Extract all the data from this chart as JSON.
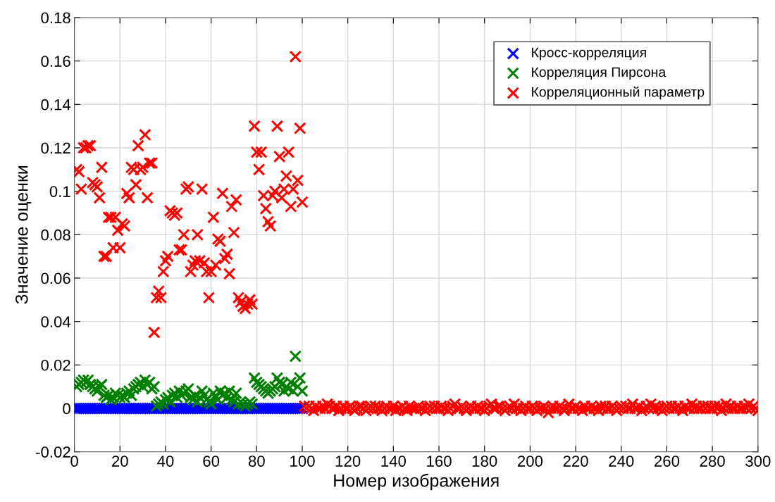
{
  "chart_data": {
    "type": "scatter",
    "xlabel": "Номер изображения",
    "ylabel": "Значение оценки",
    "xlim": [
      0,
      300
    ],
    "ylim": [
      -0.02,
      0.18
    ],
    "xticks": [
      0,
      20,
      40,
      60,
      80,
      100,
      120,
      140,
      160,
      180,
      200,
      220,
      240,
      260,
      280,
      300
    ],
    "yticks": [
      -0.02,
      0,
      0.02,
      0.04,
      0.06,
      0.08,
      0.1,
      0.12,
      0.14,
      0.16,
      0.18
    ],
    "grid": true,
    "legend": "top right",
    "marker": "cross",
    "series": [
      {
        "name": "Кросс-корреляция",
        "color": "#0000ff",
        "x": [
          1,
          2,
          3,
          4,
          5,
          6,
          7,
          8,
          9,
          10,
          11,
          12,
          13,
          14,
          15,
          16,
          17,
          18,
          19,
          20,
          21,
          22,
          23,
          24,
          25,
          26,
          27,
          28,
          29,
          30,
          31,
          32,
          33,
          34,
          35,
          36,
          37,
          38,
          39,
          40,
          41,
          42,
          43,
          44,
          45,
          46,
          47,
          48,
          49,
          50,
          51,
          52,
          53,
          54,
          55,
          56,
          57,
          58,
          59,
          60,
          61,
          62,
          63,
          64,
          65,
          66,
          67,
          68,
          69,
          70,
          71,
          72,
          73,
          74,
          75,
          76,
          77,
          78,
          79,
          80,
          81,
          82,
          83,
          84,
          85,
          86,
          87,
          88,
          89,
          90,
          91,
          92,
          93,
          94,
          95,
          96,
          97,
          98,
          99,
          100
        ],
        "values": [
          0,
          0,
          0,
          0,
          0,
          0,
          0,
          0,
          0,
          0,
          0,
          0,
          0,
          0,
          0,
          0,
          0,
          0,
          0,
          0,
          0,
          0,
          0,
          0,
          0,
          0,
          0,
          0,
          0,
          0,
          0,
          0,
          0,
          0,
          0,
          0,
          0,
          0,
          0,
          0,
          0,
          0,
          0,
          0,
          0,
          0,
          0,
          0,
          0,
          0,
          0,
          0,
          0,
          0,
          0,
          0,
          0,
          0,
          0,
          0,
          0,
          0,
          0,
          0,
          0,
          0,
          0,
          0,
          0,
          0,
          0,
          0,
          0,
          0,
          0,
          0,
          0,
          0,
          0,
          0,
          0,
          0,
          0,
          0,
          0,
          0,
          0,
          0,
          0,
          0,
          0,
          0,
          0,
          0,
          0,
          0,
          0,
          0,
          0,
          0
        ]
      },
      {
        "name": "Корреляция Пирсона",
        "color": "#008000",
        "x": [
          1,
          2,
          3,
          4,
          5,
          6,
          7,
          8,
          9,
          10,
          11,
          12,
          13,
          14,
          15,
          16,
          17,
          18,
          19,
          20,
          21,
          22,
          23,
          24,
          25,
          26,
          27,
          28,
          29,
          30,
          31,
          32,
          33,
          34,
          35,
          36,
          37,
          38,
          39,
          40,
          41,
          42,
          43,
          44,
          45,
          46,
          47,
          48,
          49,
          50,
          51,
          52,
          53,
          54,
          55,
          56,
          57,
          58,
          59,
          60,
          61,
          62,
          63,
          64,
          65,
          66,
          67,
          68,
          69,
          70,
          71,
          72,
          73,
          74,
          75,
          76,
          77,
          78,
          79,
          80,
          81,
          82,
          83,
          84,
          85,
          86,
          87,
          88,
          89,
          90,
          91,
          92,
          93,
          94,
          95,
          96,
          97,
          98,
          99,
          100
        ],
        "values": [
          0.01,
          0.011,
          0.012,
          0.013,
          0.012,
          0.013,
          0.011,
          0.01,
          0.009,
          0.008,
          0.01,
          0.011,
          0.006,
          0.005,
          0.006,
          0.004,
          0.005,
          0.007,
          0.006,
          0.005,
          0.006,
          0.005,
          0.007,
          0.008,
          0.006,
          0.009,
          0.01,
          0.011,
          0.012,
          0.01,
          0.013,
          0.011,
          0.012,
          0.009,
          0.01,
          0.001,
          0.002,
          0.003,
          0.002,
          0.004,
          0.005,
          0.003,
          0.006,
          0.007,
          0.005,
          0.008,
          0.006,
          0.007,
          0.008,
          0.009,
          0.005,
          0.004,
          0.006,
          0.003,
          0.005,
          0.008,
          0.006,
          0.004,
          0.003,
          0.002,
          0.007,
          0.005,
          0.004,
          0.008,
          0.006,
          0.007,
          0.005,
          0.008,
          0.004,
          0.003,
          0.007,
          0.002,
          0.003,
          0.002,
          0.001,
          0.002,
          0.003,
          0.002,
          0.014,
          0.012,
          0.011,
          0.01,
          0.009,
          0.008,
          0.007,
          0.008,
          0.009,
          0.01,
          0.014,
          0.012,
          0.011,
          0.008,
          0.01,
          0.009,
          0.012,
          0.008,
          0.024,
          0.01,
          0.014,
          0.008
        ]
      },
      {
        "name": "Корреляционный параметр",
        "color": "#ff0000",
        "x": [
          1,
          2,
          3,
          4,
          5,
          6,
          7,
          8,
          9,
          10,
          11,
          12,
          13,
          14,
          15,
          16,
          17,
          18,
          19,
          20,
          21,
          22,
          23,
          24,
          25,
          26,
          27,
          28,
          29,
          30,
          31,
          32,
          33,
          34,
          35,
          36,
          37,
          38,
          39,
          40,
          41,
          42,
          43,
          44,
          45,
          46,
          47,
          48,
          49,
          50,
          51,
          52,
          53,
          54,
          55,
          56,
          57,
          58,
          59,
          60,
          61,
          62,
          63,
          64,
          65,
          66,
          67,
          68,
          69,
          70,
          71,
          72,
          73,
          74,
          75,
          76,
          77,
          78,
          79,
          80,
          81,
          82,
          83,
          84,
          85,
          86,
          87,
          88,
          89,
          90,
          91,
          92,
          93,
          94,
          95,
          96,
          97,
          98,
          99,
          100,
          101,
          102,
          103,
          104,
          105,
          106,
          107,
          108,
          109,
          110,
          111,
          112,
          113,
          114,
          115,
          116,
          117,
          118,
          119,
          120,
          121,
          122,
          123,
          124,
          125,
          126,
          127,
          128,
          129,
          130,
          131,
          132,
          133,
          134,
          135,
          136,
          137,
          138,
          139,
          140,
          141,
          142,
          143,
          144,
          145,
          146,
          147,
          148,
          149,
          150,
          151,
          152,
          153,
          154,
          155,
          156,
          157,
          158,
          159,
          160,
          161,
          162,
          163,
          164,
          165,
          166,
          167,
          168,
          169,
          170,
          171,
          172,
          173,
          174,
          175,
          176,
          177,
          178,
          179,
          180,
          181,
          182,
          183,
          184,
          185,
          186,
          187,
          188,
          189,
          190,
          191,
          192,
          193,
          194,
          195,
          196,
          197,
          198,
          199,
          200,
          201,
          202,
          203,
          204,
          205,
          206,
          207,
          208,
          209,
          210,
          211,
          212,
          213,
          214,
          215,
          216,
          217,
          218,
          219,
          220,
          221,
          222,
          223,
          224,
          225,
          226,
          227,
          228,
          229,
          230,
          231,
          232,
          233,
          234,
          235,
          236,
          237,
          238,
          239,
          240,
          241,
          242,
          243,
          244,
          245,
          246,
          247,
          248,
          249,
          250,
          251,
          252,
          253,
          254,
          255,
          256,
          257,
          258,
          259,
          260,
          261,
          262,
          263,
          264,
          265,
          266,
          267,
          268,
          269,
          270,
          271,
          272,
          273,
          274,
          275,
          276,
          277,
          278,
          279,
          280,
          281,
          282,
          283,
          284,
          285,
          286,
          287,
          288,
          289,
          290,
          291,
          292,
          293,
          294,
          295,
          296,
          297,
          298,
          299,
          300
        ],
        "values": [
          0.11,
          0.109,
          0.101,
          0.12,
          0.12,
          0.121,
          0.121,
          0.104,
          0.103,
          0.102,
          0.097,
          0.111,
          0.07,
          0.07,
          0.088,
          0.088,
          0.074,
          0.088,
          0.082,
          0.074,
          0.085,
          0.084,
          0.099,
          0.097,
          0.111,
          0.11,
          0.103,
          0.121,
          0.11,
          0.111,
          0.126,
          0.097,
          0.113,
          0.113,
          0.035,
          0.051,
          0.054,
          0.051,
          0.063,
          0.068,
          0.07,
          0.091,
          0.09,
          0.089,
          0.09,
          0.073,
          0.073,
          0.08,
          0.101,
          0.102,
          0.063,
          0.066,
          0.068,
          0.08,
          0.068,
          0.101,
          0.067,
          0.063,
          0.051,
          0.063,
          0.088,
          0.066,
          0.078,
          0.077,
          0.099,
          0.069,
          0.071,
          0.062,
          0.093,
          0.081,
          0.096,
          0.051,
          0.049,
          0.047,
          0.046,
          0.048,
          0.05,
          0.048,
          0.13,
          0.118,
          0.11,
          0.118,
          0.098,
          0.092,
          0.086,
          0.084,
          0.098,
          0.1,
          0.13,
          0.116,
          0.097,
          0.101,
          0.107,
          0.118,
          0.093,
          0.101,
          0.162,
          0.105,
          0.129,
          0.095,
          0.001,
          0,
          0.001,
          0,
          -0.001,
          0.001,
          0,
          0,
          0.001,
          0,
          0.002,
          0.001,
          0,
          0,
          0.001,
          -0.001,
          0,
          0.001,
          0,
          0,
          0.001,
          0,
          -0.001,
          0,
          0.001,
          0.001,
          0,
          -0.001,
          0,
          0.001,
          0,
          0.001,
          0,
          0,
          -0.001,
          0,
          0.001,
          0,
          0,
          0.001,
          -0.001,
          0,
          0,
          0.001,
          0,
          -0.001,
          0.001,
          0,
          0,
          0,
          0.001,
          0,
          0,
          -0.001,
          0,
          0.001,
          0,
          0.001,
          0,
          0,
          0.001,
          0,
          0,
          -0.001,
          0,
          0.001,
          0.002,
          0,
          0,
          0.001,
          0,
          -0.001,
          0,
          0.001,
          0,
          0,
          0.001,
          0,
          0,
          -0.001,
          0,
          0.001,
          0.002,
          0,
          0,
          0.001,
          0.001,
          0,
          -0.001,
          0,
          0.001,
          0,
          0.002,
          0,
          0,
          -0.001,
          0,
          0.001,
          0,
          0,
          0.001,
          0,
          -0.001,
          0,
          0,
          0.001,
          0,
          -0.002,
          0,
          0.001,
          0,
          0,
          0.001,
          0,
          -0.001,
          0,
          0.002,
          0,
          0,
          0.001,
          0,
          0,
          -0.001,
          0.001,
          0,
          0,
          0.001,
          0,
          0,
          -0.001,
          0.001,
          0,
          0.001,
          0,
          0,
          0.001,
          0,
          -0.001,
          0,
          0.001,
          0,
          0.001,
          0,
          0,
          0.002,
          0,
          0,
          0.001,
          -0.001,
          0,
          0.001,
          0,
          0.002,
          0,
          0.001,
          0,
          0,
          -0.001,
          0,
          0.001,
          0,
          0.001,
          0,
          0,
          0.001,
          0,
          -0.001,
          0.001,
          0,
          0,
          0.002,
          0,
          0.001,
          0,
          0,
          0.001,
          0,
          0.001,
          0,
          0,
          0.001,
          0,
          0.001,
          -0.001,
          0,
          0.002,
          0,
          0.001,
          0,
          0,
          0.001,
          0,
          0,
          0.001,
          0,
          0.002,
          0,
          0.001,
          0,
          -0.001
        ]
      }
    ]
  }
}
